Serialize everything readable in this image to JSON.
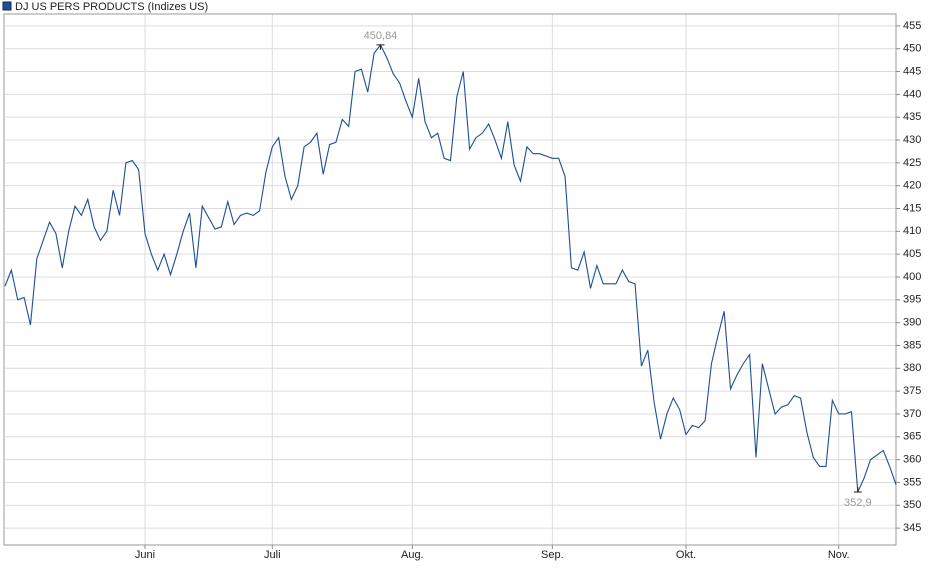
{
  "chart_data": {
    "type": "line",
    "series": [
      {
        "name": "DJ US PERS PRODUCTS (Indizes US)",
        "color": "#1c4f97",
        "values": [
          398,
          401.5,
          395,
          395.5,
          389.5,
          404,
          408,
          412,
          409.5,
          402,
          410,
          415.5,
          413.5,
          417,
          411,
          408,
          410,
          419,
          413.5,
          425,
          425.5,
          423.5,
          409.5,
          405,
          401.5,
          405,
          400.5,
          405,
          410,
          414,
          402,
          415.5,
          413,
          410.5,
          411,
          416.5,
          411.5,
          413.5,
          414,
          413.5,
          414.5,
          423,
          428.5,
          430.5,
          422,
          417,
          420,
          428.5,
          429.5,
          431.5,
          422.5,
          429,
          429.5,
          434.5,
          433,
          445,
          445.5,
          440.5,
          449,
          450.84,
          448,
          444.5,
          442.5,
          438.5,
          435,
          443.5,
          434,
          430.5,
          431.5,
          426,
          425.5,
          439.5,
          445,
          428,
          430.5,
          431.5,
          433.5,
          430,
          426,
          434,
          424.5,
          421,
          428.5,
          427,
          427,
          426.5,
          426,
          426,
          422,
          402,
          401.5,
          405.5,
          397.5,
          402.5,
          398.5,
          398.5,
          398.5,
          401.5,
          399,
          398.5,
          380.5,
          384,
          372.5,
          364.5,
          370,
          373.5,
          371,
          365.5,
          367.5,
          367,
          368.5,
          381,
          387,
          392.5,
          375.5,
          378.5,
          381,
          383,
          360.5,
          381,
          375.5,
          370,
          371.5,
          372,
          374,
          373.5,
          366,
          360.5,
          358.5,
          358.5,
          373,
          370,
          370,
          370.5,
          352.9,
          356,
          360,
          361,
          362,
          358.5,
          354.5
        ],
        "value_labels": [
          null,
          null,
          null,
          null,
          null,
          null,
          null,
          null,
          null,
          null,
          null,
          null,
          null,
          null,
          null,
          null,
          null,
          null,
          null,
          null,
          null,
          null,
          null,
          null,
          null,
          null,
          null,
          null,
          null,
          null,
          null,
          null,
          null,
          null,
          null,
          null,
          null,
          null,
          null,
          null,
          null,
          null,
          null,
          null,
          null,
          null,
          null,
          null,
          null,
          null,
          null,
          null,
          null,
          null,
          null,
          null,
          null,
          null,
          null,
          "450,84",
          null,
          null,
          null,
          null,
          null,
          null,
          null,
          null,
          null,
          null,
          null,
          null,
          null,
          null,
          null,
          null,
          null,
          null,
          null,
          null,
          null,
          null,
          null,
          null,
          null,
          null,
          null,
          null,
          null,
          null,
          null,
          null,
          null,
          null,
          null,
          null,
          null,
          null,
          null,
          null,
          null,
          null,
          null,
          null,
          null,
          null,
          null,
          null,
          null,
          null,
          null,
          null,
          null,
          null,
          null,
          null,
          null,
          null,
          null,
          null,
          null,
          null,
          null,
          null,
          null,
          null,
          null,
          null,
          null,
          null,
          null,
          null,
          null,
          null,
          "352,9",
          null,
          null,
          null,
          null,
          null,
          null
        ]
      }
    ],
    "categories": [
      null,
      null,
      null,
      null,
      null,
      null,
      null,
      null,
      null,
      null,
      null,
      null,
      null,
      null,
      null,
      null,
      null,
      null,
      null,
      null,
      null,
      null,
      "Juni",
      null,
      null,
      null,
      null,
      null,
      null,
      null,
      null,
      null,
      null,
      null,
      null,
      null,
      null,
      null,
      null,
      null,
      null,
      null,
      "Juli",
      null,
      null,
      null,
      null,
      null,
      null,
      null,
      null,
      null,
      null,
      null,
      null,
      null,
      null,
      null,
      null,
      null,
      null,
      null,
      null,
      null,
      "Aug.",
      null,
      null,
      null,
      null,
      null,
      null,
      null,
      null,
      null,
      null,
      null,
      null,
      null,
      null,
      null,
      null,
      null,
      null,
      null,
      null,
      null,
      "Sep.",
      null,
      null,
      null,
      null,
      null,
      null,
      null,
      null,
      null,
      null,
      null,
      null,
      null,
      null,
      null,
      null,
      null,
      null,
      null,
      null,
      "Okt.",
      null,
      null,
      null,
      null,
      null,
      null,
      null,
      null,
      null,
      null,
      null,
      null,
      null,
      null,
      null,
      null,
      null,
      null,
      null,
      null,
      null,
      null,
      null,
      "Nov.",
      null,
      null,
      null,
      null,
      null,
      null,
      null,
      null,
      null
    ],
    "ylim": [
      341.3,
      457.6
    ],
    "yticks": [
      345,
      350,
      355,
      360,
      365,
      370,
      375,
      380,
      385,
      390,
      395,
      400,
      405,
      410,
      415,
      420,
      425,
      430,
      435,
      440,
      445,
      450,
      455
    ],
    "grid": true
  }
}
